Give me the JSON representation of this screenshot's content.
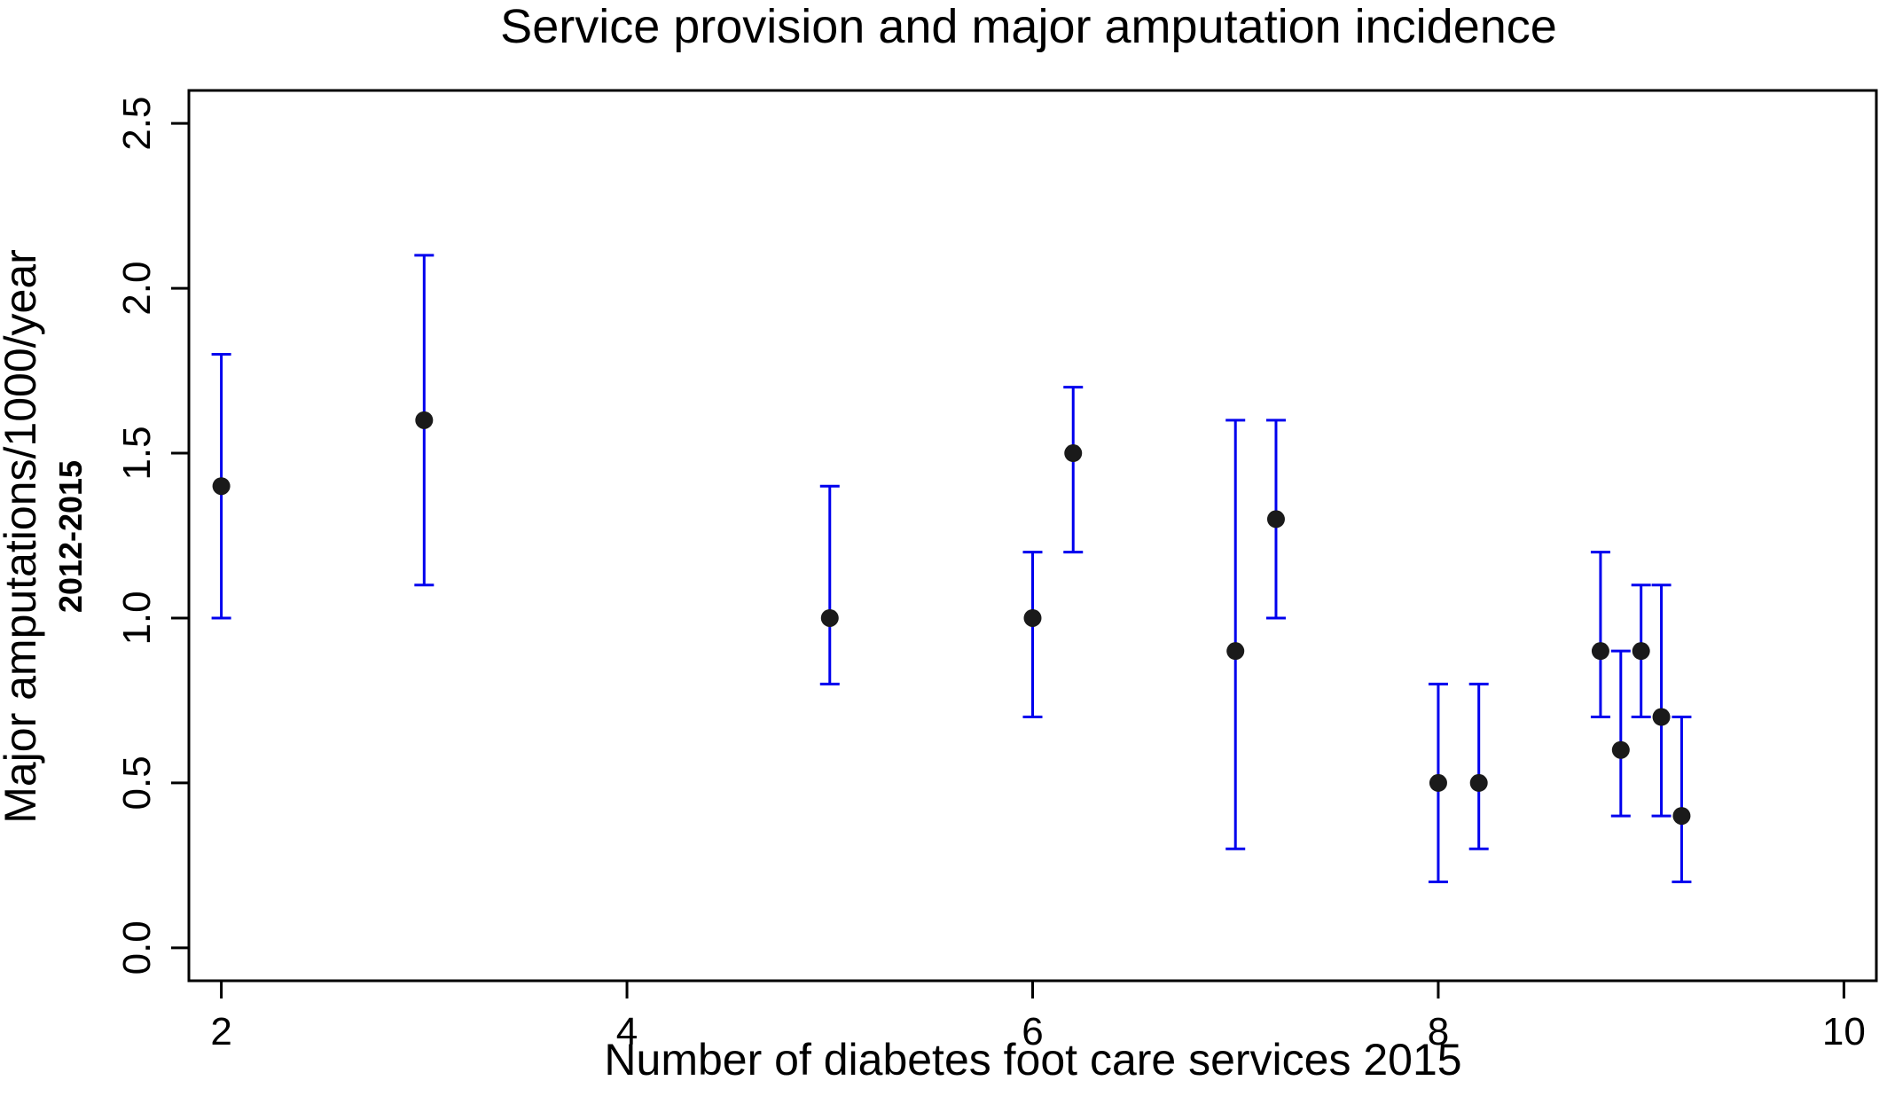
{
  "chart_data": {
    "type": "scatter",
    "title": "Service provision and major amputation incidence",
    "xlabel": "Number of diabetes foot care services 2015",
    "ylabel": "Major amputations/1000/year",
    "ylabel_sub": "2012-2015",
    "xlim": [
      1.84,
      10.16
    ],
    "ylim": [
      -0.1,
      2.6
    ],
    "xticks": [
      2,
      4,
      6,
      8,
      10
    ],
    "xtick_labels": [
      "2",
      "4",
      "6",
      "8",
      "10"
    ],
    "yticks": [
      0.0,
      0.5,
      1.0,
      1.5,
      2.0,
      2.5
    ],
    "ytick_labels": [
      "0.0",
      "0.5",
      "1.0",
      "1.5",
      "2.0",
      "2.5"
    ],
    "grid": false,
    "legend": "none",
    "point_color": "#1a1a1a",
    "errorbar_color": "#0000ee",
    "points": [
      {
        "x": 2.0,
        "y": 1.4,
        "low": 1.0,
        "high": 1.8
      },
      {
        "x": 3.0,
        "y": 1.6,
        "low": 1.1,
        "high": 2.1
      },
      {
        "x": 5.0,
        "y": 1.0,
        "low": 0.8,
        "high": 1.4
      },
      {
        "x": 6.0,
        "y": 1.0,
        "low": 0.7,
        "high": 1.2
      },
      {
        "x": 6.2,
        "y": 1.5,
        "low": 1.2,
        "high": 1.7
      },
      {
        "x": 7.0,
        "y": 0.9,
        "low": 0.3,
        "high": 1.6
      },
      {
        "x": 7.2,
        "y": 1.3,
        "low": 1.0,
        "high": 1.6
      },
      {
        "x": 8.0,
        "y": 0.5,
        "low": 0.2,
        "high": 0.8
      },
      {
        "x": 8.2,
        "y": 0.5,
        "low": 0.3,
        "high": 0.8
      },
      {
        "x": 8.8,
        "y": 0.9,
        "low": 0.7,
        "high": 1.2
      },
      {
        "x": 8.9,
        "y": 0.6,
        "low": 0.4,
        "high": 0.9
      },
      {
        "x": 9.0,
        "y": 0.9,
        "low": 0.7,
        "high": 1.1
      },
      {
        "x": 9.1,
        "y": 0.7,
        "low": 0.4,
        "high": 1.1
      },
      {
        "x": 9.2,
        "y": 0.4,
        "low": 0.2,
        "high": 0.7
      }
    ]
  }
}
